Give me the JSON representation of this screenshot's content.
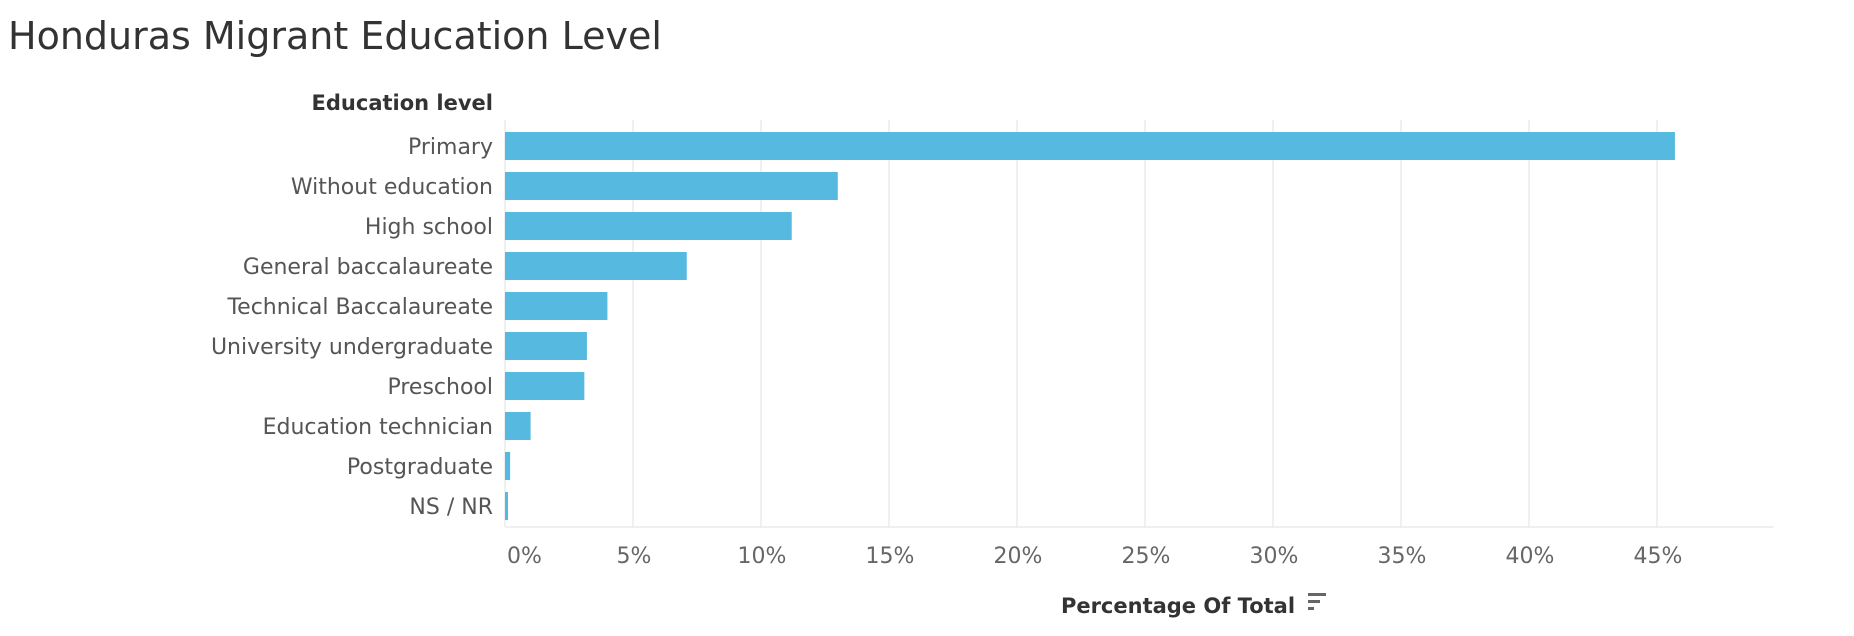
{
  "chart_data": {
    "type": "bar",
    "orientation": "horizontal",
    "title": "Honduras Migrant Education Level",
    "category_header": "Education level",
    "xlabel": "Percentage Of  Total",
    "ylabel": "",
    "categories": [
      "Primary",
      "Without education",
      "High school",
      "General baccalaureate",
      "Technical Baccalaureate",
      "University undergraduate",
      "Preschool",
      "Education technician",
      "Postgraduate",
      "NS / NR"
    ],
    "values": [
      45.7,
      13.0,
      11.2,
      7.1,
      4.0,
      3.2,
      3.1,
      1.0,
      0.2,
      0.1
    ],
    "xlim": [
      0,
      48
    ],
    "ticks": [
      0,
      5,
      10,
      15,
      20,
      25,
      30,
      35,
      40,
      45
    ],
    "tick_labels": [
      "0%",
      "5%",
      "10%",
      "15%",
      "20%",
      "25%",
      "30%",
      "35%",
      "40%",
      "45%"
    ],
    "grid": true,
    "legend": "none",
    "bar_color": "#56b9e0",
    "gridline_color": "#ebebeb",
    "sort_icon": "sort-descending-icon"
  }
}
